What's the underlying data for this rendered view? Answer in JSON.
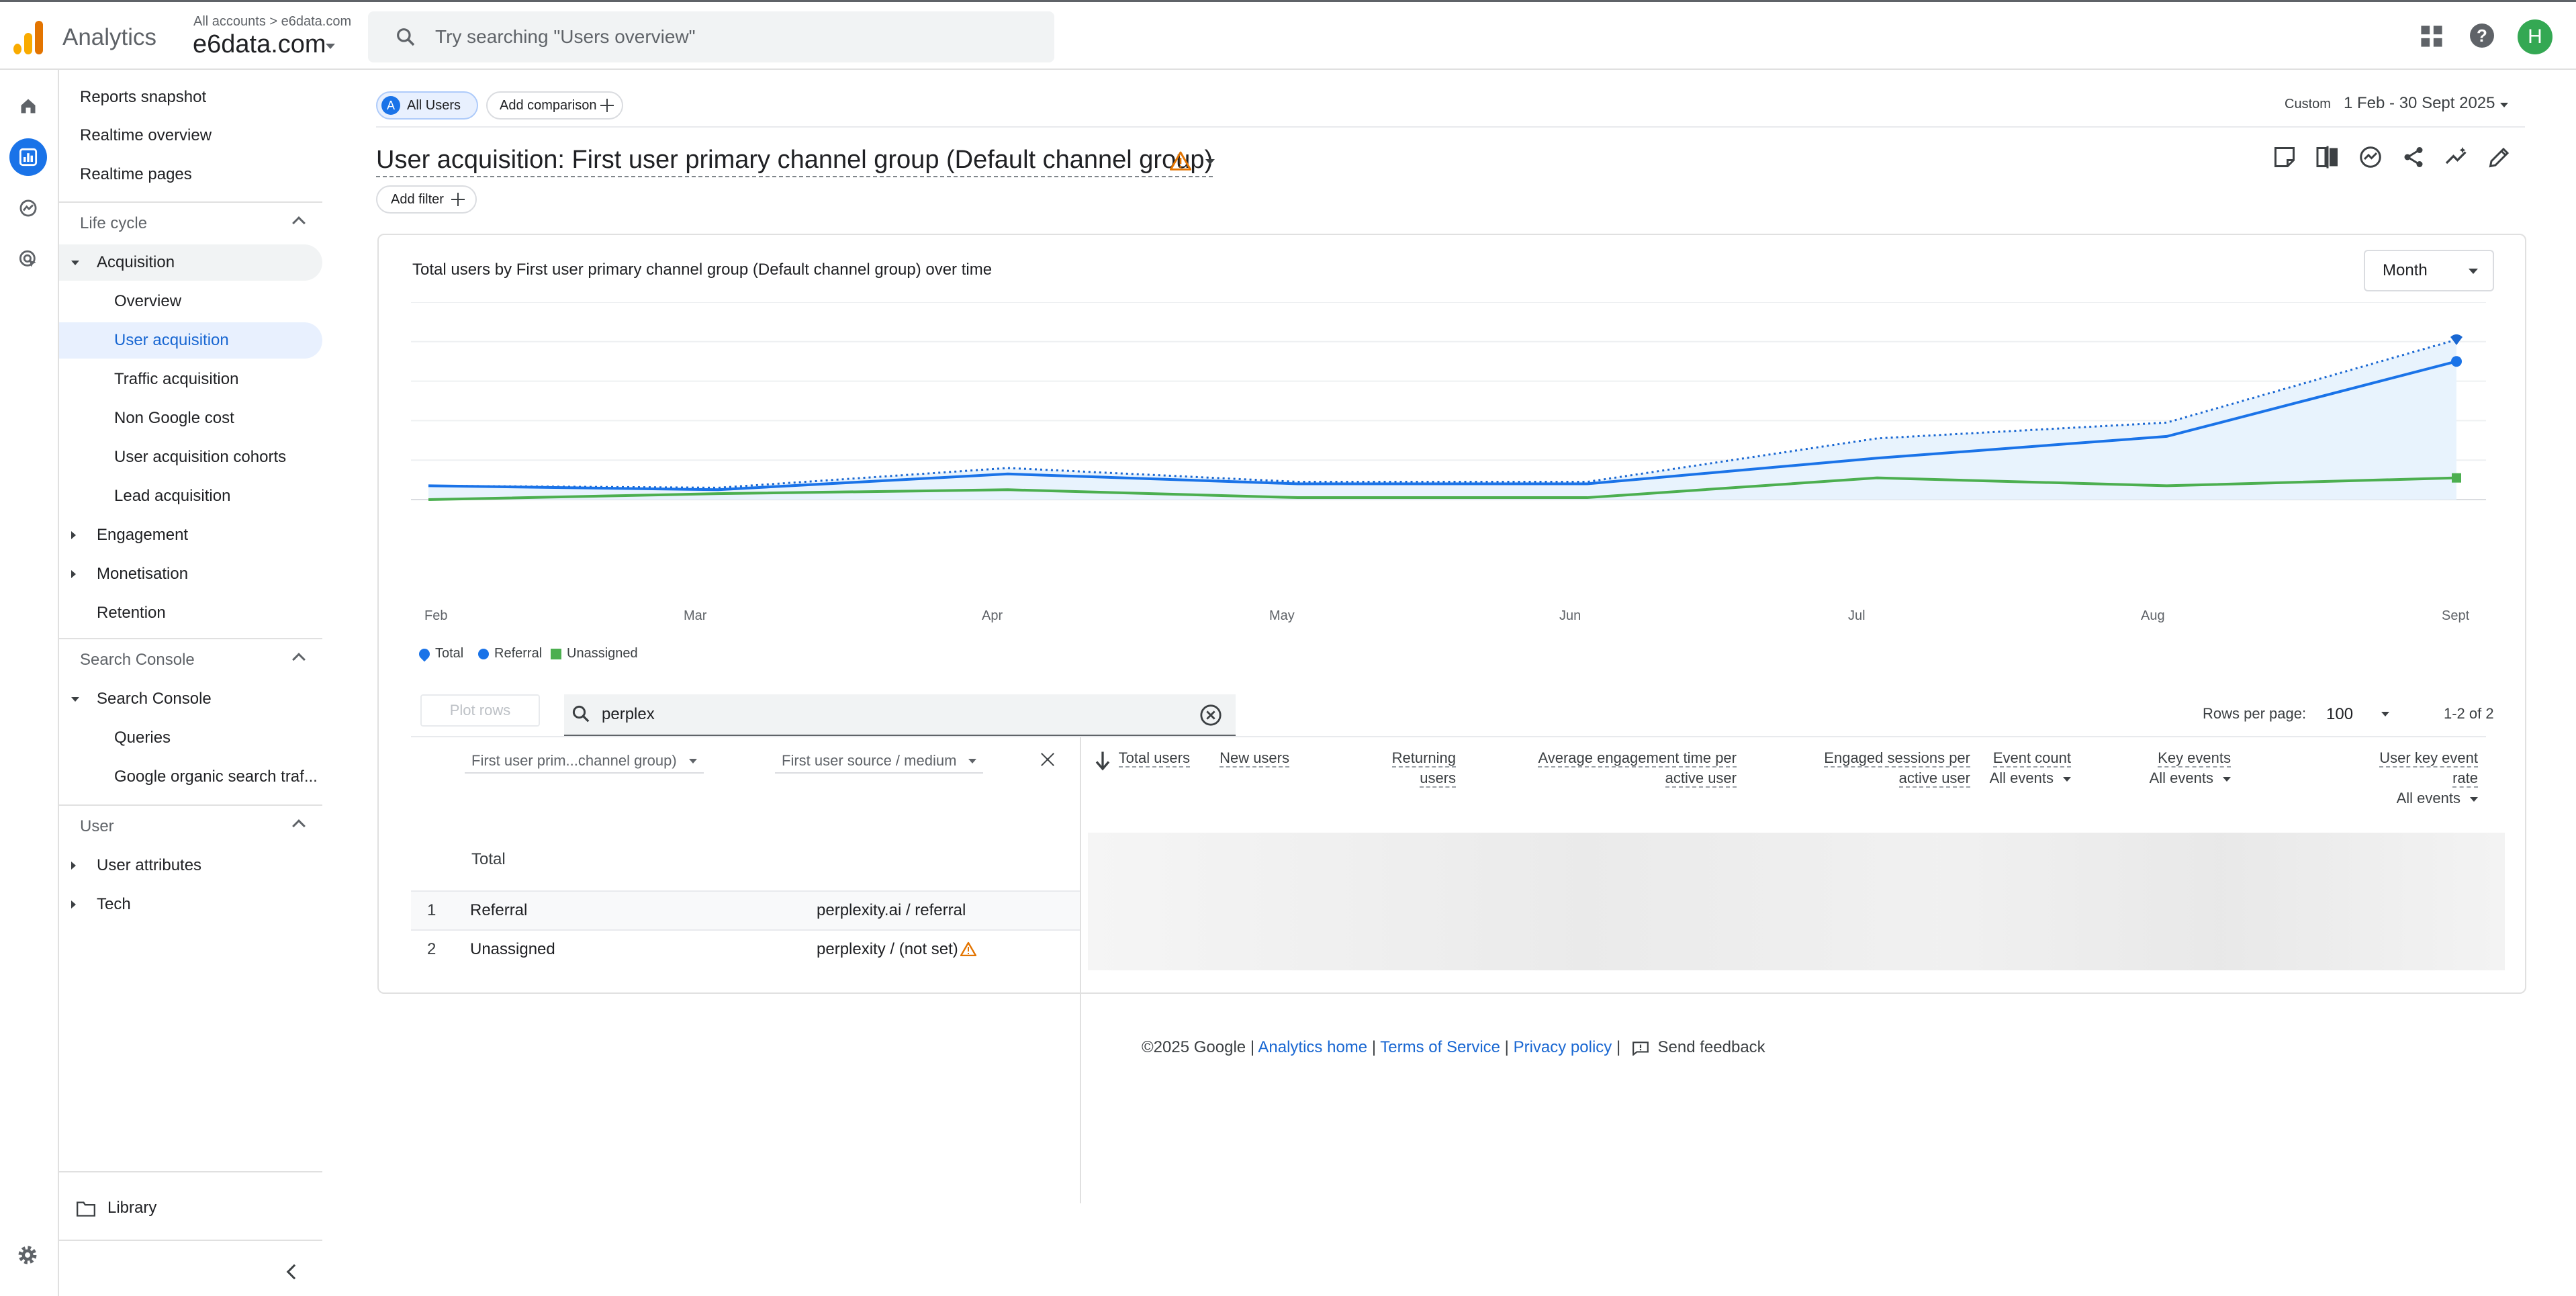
{
  "header": {
    "product": "Analytics",
    "breadcrumb": "All accounts > e6data.com",
    "account": "e6data.com",
    "search_placeholder": "Try searching \"Users overview\"",
    "avatar_letter": "H",
    "help_glyph": "?"
  },
  "sidebar": {
    "top_items": [
      "Reports snapshot",
      "Realtime overview",
      "Realtime pages"
    ],
    "lifecycle": {
      "title": "Life cycle",
      "acquisition": "Acquisition",
      "acq_items": [
        "Overview",
        "User acquisition",
        "Traffic acquisition",
        "Non Google cost",
        "User acquisition cohorts",
        "Lead acquisition"
      ],
      "engagement": "Engagement",
      "monetisation": "Monetisation",
      "retention": "Retention"
    },
    "search_console": {
      "title": "Search Console",
      "group": "Search Console",
      "items": [
        "Queries",
        "Google organic search traf..."
      ]
    },
    "user": {
      "title": "User",
      "items": [
        "User attributes",
        "Tech"
      ]
    },
    "library": "Library"
  },
  "toolbar": {
    "segment_letter": "A",
    "segment": "All Users",
    "add_comparison": "Add comparison",
    "date_label": "Custom",
    "date_range": "1 Feb - 30 Sept 2025",
    "title": "User acquisition: First user primary channel group (Default channel group)",
    "add_filter": "Add filter"
  },
  "card": {
    "chart_title": "Total users by First user primary channel group (Default channel group) over time",
    "granularity": "Month",
    "plot_rows": "Plot rows",
    "search_value": "perplex",
    "rows_per_page_label": "Rows per page:",
    "rows_per_page": "100",
    "range": "1-2 of 2"
  },
  "chart_data": {
    "type": "line",
    "x": [
      "Feb",
      "Mar",
      "Apr",
      "May",
      "Jun",
      "Jul",
      "Aug",
      "Sept"
    ],
    "series": [
      {
        "name": "Total",
        "values": [
          7,
          6,
          16,
          9,
          9,
          31,
          39,
          81
        ]
      },
      {
        "name": "Referral",
        "values": [
          7,
          5,
          13,
          8,
          8,
          21,
          32,
          70
        ]
      },
      {
        "name": "Unassigned",
        "values": [
          0,
          3,
          5,
          1,
          1,
          11,
          7,
          11
        ]
      }
    ],
    "ylim": [
      0,
      100
    ],
    "grid": true,
    "legend": "bottom-left",
    "colors": {
      "Total": "#1a73e8",
      "Referral": "#1a73e8",
      "Unassigned": "#4caf50"
    }
  },
  "table": {
    "dim1": "First user prim...channel group)",
    "dim2": "First user source / medium",
    "metrics": [
      {
        "label": "Total users"
      },
      {
        "label": "New users"
      },
      {
        "label": "Returning users"
      },
      {
        "label": "Average engagement time per active user"
      },
      {
        "label": "Engaged sessions per active user"
      },
      {
        "label": "Event count",
        "sub": "All events"
      },
      {
        "label": "Key events",
        "sub": "All events"
      },
      {
        "label": "User key event rate",
        "sub": "All events"
      }
    ],
    "total_label": "Total",
    "rows": [
      {
        "index": "1",
        "channel": "Referral",
        "source": "perplexity.ai / referral"
      },
      {
        "index": "2",
        "channel": "Unassigned",
        "source": "perplexity / (not set)"
      }
    ]
  },
  "footer": {
    "copyright": "©2025 Google",
    "sep": "|",
    "links": [
      "Analytics home",
      "Terms of Service",
      "Privacy policy"
    ],
    "feedback": "Send feedback"
  }
}
